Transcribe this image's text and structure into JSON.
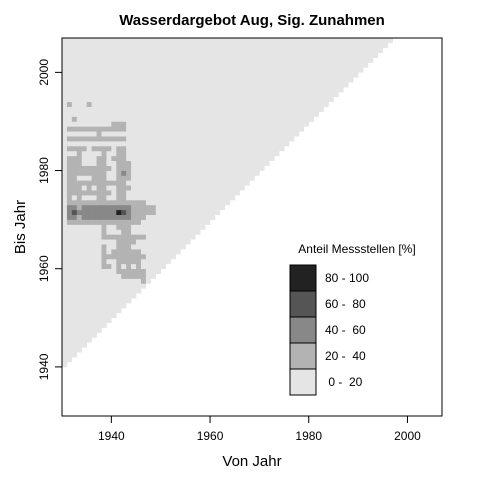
{
  "chart_data": {
    "type": "heatmap",
    "title": "Wasserdargebot Aug, Sig. Zunahmen",
    "xlabel": "Von Jahr",
    "ylabel": "Bis Jahr",
    "xlim": [
      1930,
      2007
    ],
    "ylim": [
      1930,
      2007
    ],
    "x_ticks": [
      1940,
      1960,
      1980,
      2000
    ],
    "y_ticks": [
      1940,
      1960,
      1980,
      2000
    ],
    "x_tick_labels": [
      "1940",
      "1960",
      "1980",
      "2000"
    ],
    "y_tick_labels": [
      "1940",
      "1960",
      "1980",
      "2000"
    ],
    "grid": false,
    "cell_years": 1,
    "domain": {
      "from_min": 1930,
      "from_max": 2007,
      "to_max": 2007,
      "min_span": 10,
      "base_class": 0
    },
    "legend": {
      "title": "Anteil Messstellen [%]",
      "position": "bottom-right",
      "classes": [
        {
          "label": "80 - 100",
          "color": "#222222"
        },
        {
          "label": "60 -  80",
          "color": "#555555"
        },
        {
          "label": "40 -  60",
          "color": "#888888"
        },
        {
          "label": "20 -  40",
          "color": "#b3b3b3"
        },
        {
          "label": " 0 -  20",
          "color": "#e5e5e5"
        }
      ]
    },
    "class_colors": [
      "#e5e5e5",
      "#b3b3b3",
      "#888888",
      "#555555",
      "#222222"
    ],
    "highlight_cells": {
      "cell_format": "[from_year, to_year, class_index]",
      "cells": [
        [
          1931,
          1988,
          1
        ],
        [
          1932,
          1988,
          1
        ],
        [
          1933,
          1988,
          1
        ],
        [
          1934,
          1988,
          1
        ],
        [
          1935,
          1988,
          1
        ],
        [
          1936,
          1988,
          1
        ],
        [
          1937,
          1988,
          1
        ],
        [
          1938,
          1988,
          1
        ],
        [
          1939,
          1988,
          1
        ],
        [
          1940,
          1988,
          1
        ],
        [
          1941,
          1988,
          1
        ],
        [
          1942,
          1988,
          1
        ],
        [
          1931,
          1986,
          1
        ],
        [
          1932,
          1986,
          1
        ],
        [
          1933,
          1986,
          1
        ],
        [
          1934,
          1986,
          1
        ],
        [
          1935,
          1986,
          1
        ],
        [
          1936,
          1986,
          1
        ],
        [
          1937,
          1986,
          1
        ],
        [
          1938,
          1986,
          1
        ],
        [
          1939,
          1986,
          1
        ],
        [
          1940,
          1986,
          1
        ],
        [
          1941,
          1986,
          1
        ],
        [
          1942,
          1986,
          1
        ],
        [
          1931,
          1984,
          1
        ],
        [
          1932,
          1984,
          1
        ],
        [
          1933,
          1984,
          1
        ],
        [
          1934,
          1984,
          1
        ],
        [
          1936,
          1984,
          1
        ],
        [
          1937,
          1984,
          1
        ],
        [
          1938,
          1984,
          1
        ],
        [
          1939,
          1984,
          1
        ],
        [
          1941,
          1984,
          1
        ],
        [
          1942,
          1984,
          1
        ],
        [
          1931,
          1973,
          1
        ],
        [
          1932,
          1973,
          1
        ],
        [
          1933,
          1973,
          1
        ],
        [
          1934,
          1973,
          1
        ],
        [
          1935,
          1973,
          1
        ],
        [
          1936,
          1973,
          1
        ],
        [
          1937,
          1973,
          1
        ],
        [
          1938,
          1973,
          1
        ],
        [
          1939,
          1973,
          1
        ],
        [
          1940,
          1973,
          1
        ],
        [
          1941,
          1973,
          1
        ],
        [
          1942,
          1973,
          1
        ],
        [
          1943,
          1973,
          1
        ],
        [
          1944,
          1973,
          1
        ],
        [
          1945,
          1973,
          1
        ],
        [
          1946,
          1973,
          1
        ],
        [
          1931,
          1972,
          2
        ],
        [
          1932,
          1972,
          2
        ],
        [
          1933,
          1972,
          1
        ],
        [
          1934,
          1972,
          2
        ],
        [
          1935,
          1972,
          2
        ],
        [
          1936,
          1972,
          2
        ],
        [
          1937,
          1972,
          2
        ],
        [
          1938,
          1972,
          2
        ],
        [
          1939,
          1972,
          2
        ],
        [
          1940,
          1972,
          2
        ],
        [
          1941,
          1972,
          2
        ],
        [
          1942,
          1972,
          2
        ],
        [
          1943,
          1972,
          2
        ],
        [
          1944,
          1972,
          1
        ],
        [
          1945,
          1972,
          1
        ],
        [
          1946,
          1972,
          1
        ],
        [
          1947,
          1972,
          1
        ],
        [
          1948,
          1972,
          1
        ],
        [
          1931,
          1971,
          2
        ],
        [
          1932,
          1971,
          3
        ],
        [
          1933,
          1971,
          2
        ],
        [
          1934,
          1971,
          2
        ],
        [
          1935,
          1971,
          2
        ],
        [
          1936,
          1971,
          2
        ],
        [
          1937,
          1971,
          2
        ],
        [
          1938,
          1971,
          2
        ],
        [
          1939,
          1971,
          2
        ],
        [
          1940,
          1971,
          2
        ],
        [
          1941,
          1971,
          4
        ],
        [
          1942,
          1971,
          3
        ],
        [
          1943,
          1971,
          2
        ],
        [
          1944,
          1971,
          1
        ],
        [
          1945,
          1971,
          1
        ],
        [
          1946,
          1971,
          1
        ],
        [
          1947,
          1971,
          1
        ],
        [
          1948,
          1971,
          1
        ],
        [
          1931,
          1970,
          2
        ],
        [
          1932,
          1970,
          2
        ],
        [
          1933,
          1970,
          1
        ],
        [
          1934,
          1970,
          2
        ],
        [
          1935,
          1970,
          2
        ],
        [
          1936,
          1970,
          2
        ],
        [
          1937,
          1970,
          2
        ],
        [
          1938,
          1970,
          2
        ],
        [
          1939,
          1970,
          2
        ],
        [
          1940,
          1970,
          2
        ],
        [
          1941,
          1970,
          2
        ],
        [
          1942,
          1970,
          2
        ],
        [
          1943,
          1970,
          2
        ],
        [
          1944,
          1970,
          1
        ],
        [
          1945,
          1970,
          1
        ],
        [
          1946,
          1970,
          1
        ],
        [
          1931,
          1969,
          1
        ],
        [
          1932,
          1969,
          1
        ],
        [
          1933,
          1969,
          1
        ],
        [
          1934,
          1969,
          1
        ],
        [
          1935,
          1969,
          1
        ],
        [
          1936,
          1969,
          1
        ],
        [
          1937,
          1969,
          1
        ],
        [
          1938,
          1969,
          1
        ],
        [
          1939,
          1969,
          1
        ],
        [
          1940,
          1969,
          1
        ],
        [
          1941,
          1969,
          1
        ],
        [
          1942,
          1969,
          1
        ],
        [
          1943,
          1969,
          1
        ],
        [
          1944,
          1969,
          1
        ],
        [
          1945,
          1969,
          1
        ],
        [
          1931,
          1982,
          1
        ],
        [
          1932,
          1982,
          1
        ],
        [
          1933,
          1982,
          1
        ],
        [
          1937,
          1982,
          1
        ],
        [
          1938,
          1982,
          1
        ],
        [
          1940,
          1982,
          1
        ],
        [
          1941,
          1982,
          1
        ],
        [
          1942,
          1982,
          1
        ],
        [
          1931,
          1981,
          1
        ],
        [
          1932,
          1981,
          1
        ],
        [
          1933,
          1981,
          1
        ],
        [
          1937,
          1981,
          1
        ],
        [
          1938,
          1981,
          1
        ],
        [
          1941,
          1981,
          1
        ],
        [
          1942,
          1981,
          1
        ],
        [
          1943,
          1981,
          1
        ],
        [
          1931,
          1980,
          1
        ],
        [
          1932,
          1980,
          1
        ],
        [
          1933,
          1980,
          1
        ],
        [
          1934,
          1980,
          1
        ],
        [
          1935,
          1980,
          1
        ],
        [
          1936,
          1980,
          1
        ],
        [
          1937,
          1980,
          1
        ],
        [
          1938,
          1980,
          1
        ],
        [
          1939,
          1980,
          1
        ],
        [
          1941,
          1980,
          1
        ],
        [
          1942,
          1980,
          1
        ],
        [
          1943,
          1980,
          1
        ],
        [
          1931,
          1979,
          1
        ],
        [
          1932,
          1979,
          1
        ],
        [
          1933,
          1979,
          1
        ],
        [
          1934,
          1979,
          1
        ],
        [
          1935,
          1979,
          1
        ],
        [
          1936,
          1979,
          1
        ],
        [
          1937,
          1979,
          1
        ],
        [
          1938,
          1979,
          1
        ],
        [
          1941,
          1979,
          1
        ],
        [
          1942,
          1979,
          2
        ],
        [
          1943,
          1979,
          1
        ],
        [
          1931,
          1978,
          1
        ],
        [
          1932,
          1978,
          1
        ],
        [
          1936,
          1978,
          1
        ],
        [
          1937,
          1978,
          1
        ],
        [
          1938,
          1978,
          1
        ],
        [
          1941,
          1978,
          1
        ],
        [
          1942,
          1978,
          1
        ],
        [
          1943,
          1978,
          1
        ],
        [
          1931,
          1977,
          1
        ],
        [
          1932,
          1977,
          1
        ],
        [
          1933,
          1977,
          1
        ],
        [
          1934,
          1977,
          1
        ],
        [
          1935,
          1977,
          1
        ],
        [
          1936,
          1977,
          1
        ],
        [
          1937,
          1977,
          1
        ],
        [
          1938,
          1977,
          1
        ],
        [
          1939,
          1977,
          1
        ],
        [
          1940,
          1977,
          1
        ],
        [
          1941,
          1977,
          1
        ],
        [
          1942,
          1977,
          1
        ],
        [
          1931,
          1976,
          1
        ],
        [
          1932,
          1976,
          1
        ],
        [
          1933,
          1976,
          1
        ],
        [
          1935,
          1976,
          1
        ],
        [
          1937,
          1976,
          1
        ],
        [
          1938,
          1976,
          1
        ],
        [
          1941,
          1976,
          1
        ],
        [
          1942,
          1976,
          1
        ],
        [
          1943,
          1976,
          1
        ],
        [
          1931,
          1975,
          1
        ],
        [
          1932,
          1975,
          1
        ],
        [
          1933,
          1975,
          1
        ],
        [
          1934,
          1975,
          1
        ],
        [
          1935,
          1975,
          1
        ],
        [
          1936,
          1975,
          1
        ],
        [
          1937,
          1975,
          1
        ],
        [
          1938,
          1975,
          1
        ],
        [
          1939,
          1975,
          1
        ],
        [
          1941,
          1975,
          1
        ],
        [
          1942,
          1975,
          1
        ],
        [
          1931,
          1974,
          1
        ],
        [
          1933,
          1974,
          1
        ],
        [
          1937,
          1974,
          1
        ],
        [
          1938,
          1974,
          1
        ],
        [
          1941,
          1974,
          1
        ],
        [
          1942,
          1974,
          1
        ],
        [
          1933,
          1983,
          1
        ],
        [
          1938,
          1983,
          1
        ],
        [
          1941,
          1983,
          1
        ],
        [
          1942,
          1983,
          1
        ],
        [
          1931,
          1993,
          1
        ],
        [
          1935,
          1993,
          1
        ],
        [
          1932,
          1990,
          1
        ],
        [
          1937,
          1987,
          1
        ],
        [
          1940,
          1989,
          1
        ],
        [
          1941,
          1989,
          1
        ],
        [
          1942,
          1989,
          1
        ],
        [
          1938,
          1968,
          1
        ],
        [
          1941,
          1968,
          1
        ],
        [
          1942,
          1968,
          1
        ],
        [
          1943,
          1968,
          1
        ],
        [
          1938,
          1967,
          1
        ],
        [
          1942,
          1967,
          1
        ],
        [
          1943,
          1967,
          1
        ],
        [
          1938,
          1966,
          1
        ],
        [
          1939,
          1966,
          1
        ],
        [
          1940,
          1966,
          1
        ],
        [
          1941,
          1966,
          1
        ],
        [
          1942,
          1966,
          1
        ],
        [
          1943,
          1966,
          1
        ],
        [
          1944,
          1966,
          1
        ],
        [
          1945,
          1966,
          1
        ],
        [
          1946,
          1966,
          1
        ],
        [
          1941,
          1965,
          1
        ],
        [
          1942,
          1965,
          1
        ],
        [
          1943,
          1965,
          1
        ],
        [
          1944,
          1965,
          1
        ],
        [
          1938,
          1964,
          1
        ],
        [
          1941,
          1964,
          1
        ],
        [
          1942,
          1964,
          1
        ],
        [
          1943,
          1964,
          1
        ],
        [
          1938,
          1963,
          1
        ],
        [
          1940,
          1963,
          1
        ],
        [
          1941,
          1963,
          1
        ],
        [
          1942,
          1963,
          1
        ],
        [
          1943,
          1963,
          1
        ],
        [
          1944,
          1963,
          1
        ],
        [
          1945,
          1963,
          1
        ],
        [
          1938,
          1962,
          1
        ],
        [
          1939,
          1962,
          1
        ],
        [
          1940,
          1962,
          1
        ],
        [
          1941,
          1962,
          1
        ],
        [
          1942,
          1962,
          1
        ],
        [
          1943,
          1962,
          1
        ],
        [
          1944,
          1962,
          1
        ],
        [
          1945,
          1962,
          1
        ],
        [
          1946,
          1962,
          1
        ],
        [
          1938,
          1961,
          1
        ],
        [
          1941,
          1961,
          1
        ],
        [
          1942,
          1961,
          1
        ],
        [
          1943,
          1961,
          1
        ],
        [
          1944,
          1961,
          1
        ],
        [
          1945,
          1961,
          1
        ],
        [
          1938,
          1960,
          1
        ],
        [
          1939,
          1960,
          1
        ],
        [
          1941,
          1960,
          1
        ],
        [
          1943,
          1960,
          1
        ],
        [
          1945,
          1960,
          1
        ],
        [
          1941,
          1959,
          1
        ],
        [
          1942,
          1959,
          1
        ],
        [
          1943,
          1959,
          1
        ],
        [
          1944,
          1959,
          1
        ],
        [
          1945,
          1959,
          1
        ],
        [
          1946,
          1959,
          1
        ],
        [
          1942,
          1958,
          1
        ],
        [
          1943,
          1958,
          1
        ],
        [
          1944,
          1958,
          1
        ],
        [
          1945,
          1958,
          1
        ],
        [
          1946,
          1958,
          1
        ],
        [
          1946,
          1957,
          1
        ]
      ]
    }
  }
}
